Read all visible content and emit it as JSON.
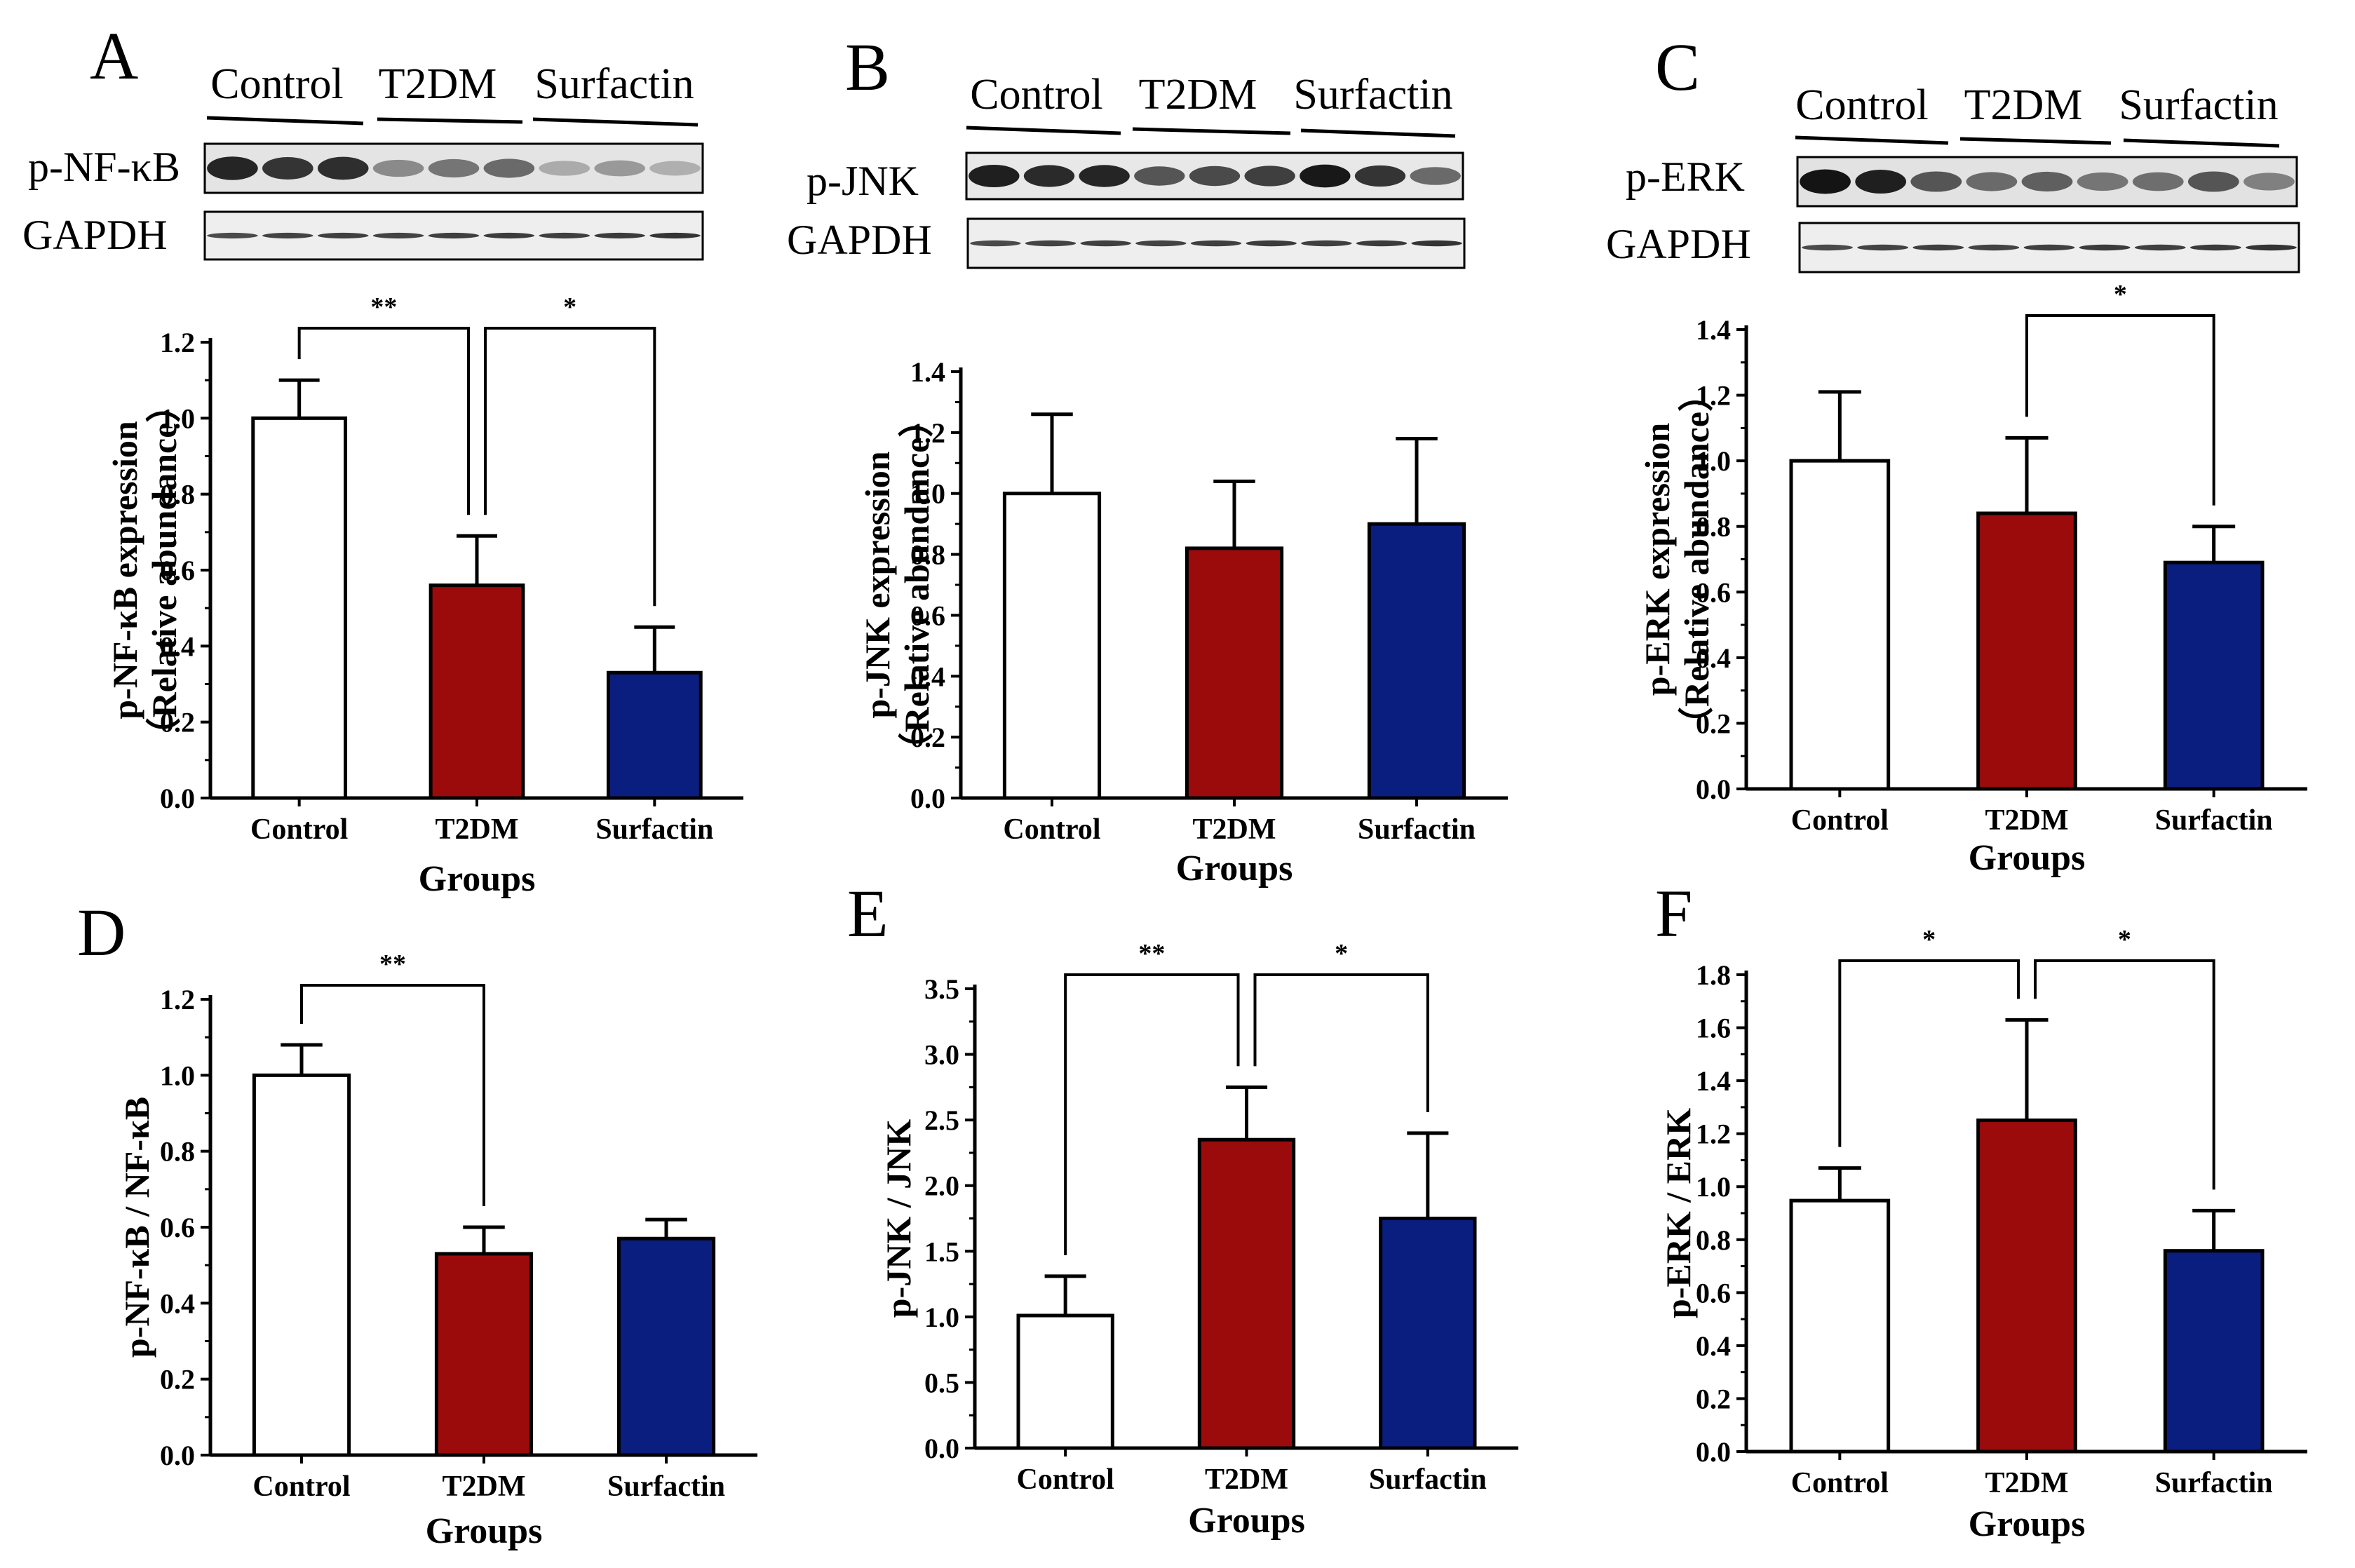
{
  "figure": {
    "groups": [
      "Control",
      "T2DM",
      "Surfactin"
    ],
    "colors": {
      "Control": "#ffffff",
      "T2DM": "#9b0b0b",
      "Surfactin": "#0a1e80",
      "stroke": "#000000"
    },
    "blot_loading": "GAPDH"
  },
  "panels": [
    {
      "letter": "A",
      "blot_protein": "p-NF-κB",
      "blot_intensities": [
        0.92,
        0.85,
        0.88,
        0.45,
        0.55,
        0.6,
        0.3,
        0.38,
        0.28
      ]
    },
    {
      "letter": "B",
      "blot_protein": "p-JNK",
      "blot_intensities": [
        0.95,
        0.9,
        0.92,
        0.7,
        0.75,
        0.8,
        0.98,
        0.85,
        0.6
      ]
    },
    {
      "letter": "C",
      "blot_protein": "p-ERK",
      "blot_intensities": [
        1.0,
        0.95,
        0.7,
        0.6,
        0.65,
        0.55,
        0.58,
        0.7,
        0.5
      ]
    },
    {
      "letter": "D"
    },
    {
      "letter": "E"
    },
    {
      "letter": "F"
    }
  ],
  "chart_data": [
    {
      "panel": "A",
      "type": "bar",
      "categories": [
        "Control",
        "T2DM",
        "Surfactin"
      ],
      "values": [
        1.0,
        0.56,
        0.33
      ],
      "errors": [
        0.1,
        0.13,
        0.12
      ],
      "ylabel_lines": [
        "p-NF-κB expression",
        "（Relative abundance）"
      ],
      "xlabel": "Groups",
      "ylim": [
        0,
        1.2
      ],
      "yticks": [
        "0.0",
        "0.2",
        "0.4",
        "0.6",
        "0.8",
        "1.0",
        "1.2"
      ],
      "annotations": [
        {
          "from": 0,
          "to": 1,
          "label": "**"
        },
        {
          "from": 1,
          "to": 2,
          "label": "*"
        }
      ]
    },
    {
      "panel": "B",
      "type": "bar",
      "categories": [
        "Control",
        "T2DM",
        "Surfactin"
      ],
      "values": [
        1.0,
        0.82,
        0.9
      ],
      "errors": [
        0.26,
        0.22,
        0.28
      ],
      "ylabel_lines": [
        "p-JNK expression",
        "（Relative abundance）"
      ],
      "xlabel": "Groups",
      "ylim": [
        0,
        1.4
      ],
      "yticks": [
        "0.0",
        "0.2",
        "0.4",
        "0.6",
        "0.8",
        "1.0",
        "1.2",
        "1.4"
      ],
      "annotations": []
    },
    {
      "panel": "C",
      "type": "bar",
      "categories": [
        "Control",
        "T2DM",
        "Surfactin"
      ],
      "values": [
        1.0,
        0.84,
        0.69
      ],
      "errors": [
        0.21,
        0.23,
        0.11
      ],
      "ylabel_lines": [
        "p-ERK  expression",
        "（Relative abundance）"
      ],
      "xlabel": "Groups",
      "ylim": [
        0,
        1.4
      ],
      "yticks": [
        "0.0",
        "0.2",
        "0.4",
        "0.6",
        "0.8",
        "1.0",
        "1.2",
        "1.4"
      ],
      "annotations": [
        {
          "from": 1,
          "to": 2,
          "label": "*"
        }
      ]
    },
    {
      "panel": "D",
      "type": "bar",
      "categories": [
        "Control",
        "T2DM",
        "Surfactin"
      ],
      "values": [
        1.0,
        0.53,
        0.57
      ],
      "errors": [
        0.08,
        0.07,
        0.05
      ],
      "ylabel_lines": [
        "p-NF-κB / NF-κB"
      ],
      "xlabel": "Groups",
      "ylim": [
        0,
        1.2
      ],
      "yticks": [
        "0.0",
        "0.2",
        "0.4",
        "0.6",
        "0.8",
        "1.0",
        "1.2"
      ],
      "annotations": [
        {
          "from": 0,
          "to": 1,
          "label": "**"
        }
      ]
    },
    {
      "panel": "E",
      "type": "bar",
      "categories": [
        "Control",
        "T2DM",
        "Surfactin"
      ],
      "values": [
        1.01,
        2.35,
        1.75
      ],
      "errors": [
        0.3,
        0.4,
        0.65
      ],
      "ylabel_lines": [
        "p-JNK / JNK"
      ],
      "xlabel": "Groups",
      "ylim": [
        0,
        3.5
      ],
      "yticks": [
        "0.0",
        "0.5",
        "1.0",
        "1.5",
        "2.0",
        "2.5",
        "3.0",
        "3.5"
      ],
      "annotations": [
        {
          "from": 0,
          "to": 1,
          "label": "**"
        },
        {
          "from": 1,
          "to": 2,
          "label": "*"
        }
      ]
    },
    {
      "panel": "F",
      "type": "bar",
      "categories": [
        "Control",
        "T2DM",
        "Surfactin"
      ],
      "values": [
        1.0,
        1.32,
        0.8
      ],
      "errors": [
        0.13,
        0.4,
        0.16
      ],
      "ylabel_lines": [
        "p-ERK / ERK"
      ],
      "xlabel": "Groups",
      "ylim": [
        0,
        1.9
      ],
      "yticks": [
        "0.0",
        "0.2",
        "0.4",
        "0.6",
        "0.8",
        "1.0",
        "1.2",
        "1.4",
        "1.6",
        "1.8"
      ],
      "annotations": [
        {
          "from": 0,
          "to": 1,
          "label": "*"
        },
        {
          "from": 1,
          "to": 2,
          "label": "*"
        }
      ]
    }
  ]
}
